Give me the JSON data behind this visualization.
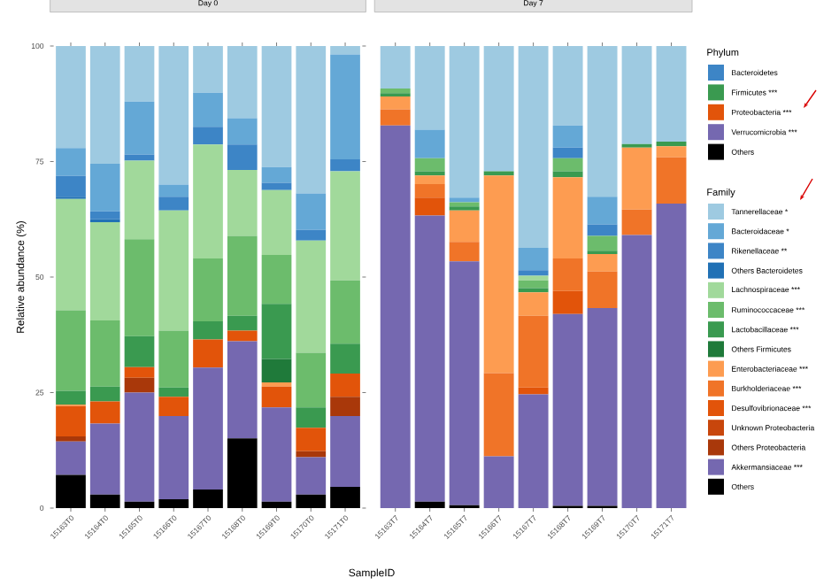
{
  "chart_data": [
    {
      "type": "bar",
      "title": "Day 0",
      "stacked": true,
      "xlabel": "SampleID",
      "ylabel": "Relative abundance (%)",
      "categories": [
        "15163T0",
        "15164T0",
        "15165T0",
        "15166T0",
        "15167T0",
        "15168T0",
        "15169T0",
        "15170T0",
        "15171T0"
      ],
      "ylim": [
        0,
        100
      ],
      "yticks": [
        0,
        25,
        50,
        75,
        100
      ],
      "series": [
        {
          "color": "#000000",
          "values": [
            7.2,
            2.9,
            1.4,
            1.9,
            4.0,
            15.1,
            1.4,
            2.9,
            4.6
          ]
        },
        {
          "color": "#7568b0",
          "values": [
            7.2,
            15.4,
            23.6,
            18.0,
            26.4,
            21.0,
            20.4,
            8.1,
            15.3
          ]
        },
        {
          "color": "#a9380a",
          "values": [
            1.1,
            0,
            3.2,
            0,
            0,
            0,
            0,
            1.3,
            4.2
          ]
        },
        {
          "color": "#c8460c",
          "values": [
            0,
            0,
            0,
            0,
            0,
            0,
            0,
            0,
            0
          ]
        },
        {
          "color": "#e2540a",
          "values": [
            6.6,
            4.8,
            2.3,
            4.2,
            6.1,
            2.3,
            4.5,
            5.1,
            5.0
          ]
        },
        {
          "color": "#f07428",
          "values": [
            0,
            0,
            0,
            0,
            0,
            0,
            0,
            0,
            0
          ]
        },
        {
          "color": "#fd9c51",
          "values": [
            0.3,
            0,
            0,
            0,
            0,
            0,
            0.9,
            0,
            0
          ]
        },
        {
          "color": "#1f7a3a",
          "values": [
            0,
            0,
            0,
            0,
            0,
            0,
            5.1,
            0,
            0
          ]
        },
        {
          "color": "#3a9a50",
          "values": [
            3.0,
            3.2,
            6.7,
            2.0,
            3.9,
            3.2,
            11.9,
            4.4,
            6.5
          ]
        },
        {
          "color": "#6cbc6c",
          "values": [
            17.4,
            14.3,
            21.0,
            12.3,
            13.6,
            17.3,
            10.6,
            11.8,
            13.7
          ]
        },
        {
          "color": "#a1d99b",
          "values": [
            24.1,
            21.3,
            17.0,
            26.0,
            24.7,
            14.3,
            14.0,
            24.3,
            23.6
          ]
        },
        {
          "color": "#2171b5",
          "values": [
            0.5,
            0.6,
            0,
            0,
            0,
            0,
            0,
            0,
            0
          ]
        },
        {
          "color": "#3d85c6",
          "values": [
            4.5,
            1.7,
            1.3,
            3.0,
            3.8,
            5.5,
            1.6,
            2.3,
            2.6
          ]
        },
        {
          "color": "#64a8d6",
          "values": [
            6.0,
            10.3,
            11.5,
            2.6,
            7.4,
            5.7,
            3.4,
            7.9,
            22.7
          ]
        },
        {
          "color": "#9ecae1",
          "values": [
            22.1,
            25.5,
            12.0,
            30.0,
            10.1,
            15.6,
            26.2,
            31.9,
            1.8
          ]
        }
      ]
    },
    {
      "type": "bar",
      "title": "Day 7",
      "stacked": true,
      "tick_labels": "x",
      "legend": "right",
      "legend_title": "Family",
      "annotations": [
        "Phylum",
        "Bacteroidetes",
        "Firmicutes ***",
        "Proteobacteria ***",
        "Verrucomicrobia ***",
        "Others"
      ],
      "categories": [
        "15163T7",
        "15164T7",
        "15165T7",
        "15166T7",
        "15167T7",
        "15168T7",
        "15169T7",
        "15170T7",
        "15171T7"
      ],
      "ylim": [
        0,
        100
      ],
      "series": [
        {
          "name": "Others",
          "color": "#000000",
          "values": [
            0,
            1.4,
            0.6,
            0,
            0,
            0.5,
            0.5,
            0,
            0
          ]
        },
        {
          "name": "Akkermansiaceae ***",
          "color": "#7568b0",
          "values": [
            82.8,
            61.9,
            52.8,
            11.2,
            24.6,
            41.5,
            42.8,
            59.1,
            65.9
          ]
        },
        {
          "name": "Others Proteobacteria",
          "color": "#a9380a",
          "values": [
            0,
            0,
            0,
            0,
            0,
            0,
            0,
            0,
            0
          ]
        },
        {
          "name": "Unknown Proteobacteria",
          "color": "#c8460c",
          "values": [
            0,
            0,
            0,
            0,
            0,
            0,
            0,
            0,
            0
          ]
        },
        {
          "name": "Desulfovibrionaceae ***",
          "color": "#e2540a",
          "values": [
            0,
            3.9,
            0,
            0,
            1.5,
            5.0,
            0,
            0,
            0
          ]
        },
        {
          "name": "Burkholderiaceae ***",
          "color": "#f07428",
          "values": [
            3.5,
            2.9,
            4.2,
            18.0,
            15.5,
            7.0,
            7.9,
            5.5,
            10.0
          ]
        },
        {
          "name": "Enterobacteriaceae ***",
          "color": "#fd9c51",
          "values": [
            2.8,
            1.9,
            6.8,
            42.8,
            5.1,
            17.6,
            3.8,
            13.4,
            2.4
          ]
        },
        {
          "name": "Others Firmicutes",
          "color": "#1f7a3a",
          "values": [
            0,
            0,
            0,
            0,
            0,
            0,
            0,
            0,
            0
          ]
        },
        {
          "name": "Lactobacillaceae ***",
          "color": "#3a9a50",
          "values": [
            0.7,
            0.9,
            0.9,
            0.9,
            0.9,
            1.3,
            0.7,
            0.8,
            1.0
          ]
        },
        {
          "name": "Ruminococcaceae ***",
          "color": "#6cbc6c",
          "values": [
            1.0,
            2.8,
            0.9,
            0,
            1.7,
            2.8,
            3.2,
            0,
            0
          ]
        },
        {
          "name": "Lachnospiraceae ***",
          "color": "#a1d99b",
          "values": [
            0,
            0,
            0,
            0,
            1.0,
            0,
            0,
            0,
            0
          ]
        },
        {
          "name": "Others Bacteroidetes",
          "color": "#2171b5",
          "values": [
            0,
            0,
            0,
            0,
            0,
            0,
            0,
            0,
            0
          ]
        },
        {
          "name": "Rikenellaceae **",
          "color": "#3d85c6",
          "values": [
            0,
            0,
            0,
            0,
            1.2,
            2.3,
            2.5,
            0,
            0
          ]
        },
        {
          "name": "Bacteroidaceae *",
          "color": "#64a8d6",
          "values": [
            0,
            6.2,
            1.0,
            0,
            4.8,
            4.8,
            6.0,
            0,
            0
          ]
        },
        {
          "name": "Tannerellaceae *",
          "color": "#9ecae1",
          "values": [
            9.2,
            18.1,
            32.8,
            27.1,
            43.7,
            17.2,
            32.6,
            21.2,
            20.7
          ]
        }
      ]
    }
  ]
}
